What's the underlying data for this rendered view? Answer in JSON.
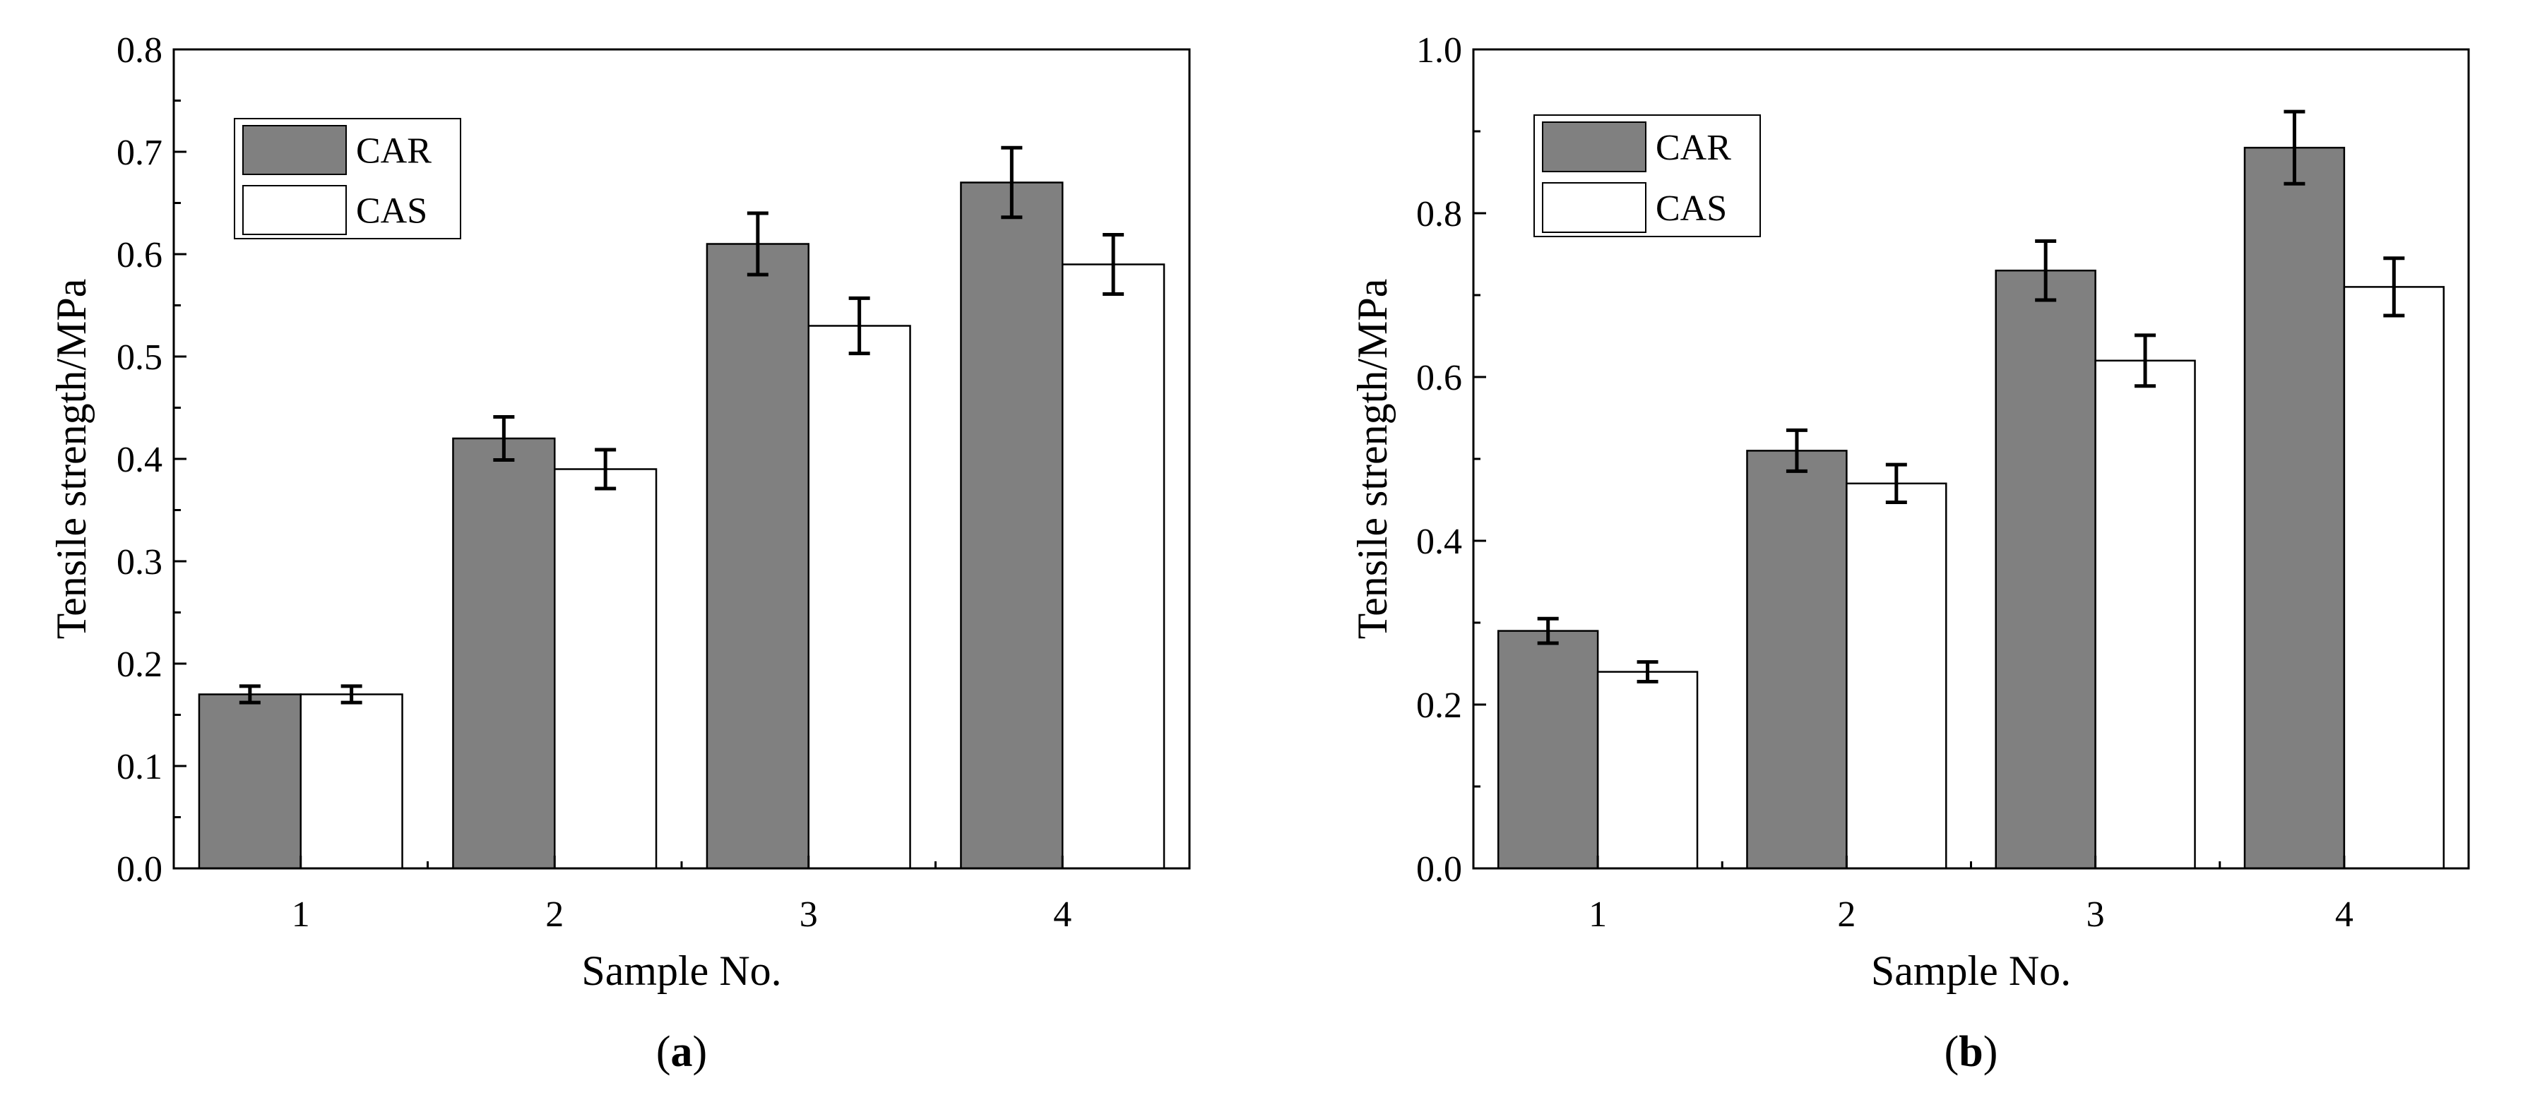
{
  "colors": {
    "car": "#808080",
    "cas": "#ffffff",
    "stroke": "#000000"
  },
  "chart_data": [
    {
      "type": "bar",
      "panel_open": "(",
      "panel_letter": "a",
      "panel_close": ")",
      "categories": [
        "1",
        "2",
        "3",
        "4"
      ],
      "series": [
        {
          "name": "CAR",
          "values": [
            0.17,
            0.42,
            0.61,
            0.67
          ],
          "errors": [
            0.008,
            0.021,
            0.03,
            0.034
          ]
        },
        {
          "name": "CAS",
          "values": [
            0.17,
            0.39,
            0.53,
            0.59
          ],
          "errors": [
            0.008,
            0.019,
            0.027,
            0.029
          ]
        }
      ],
      "xlabel": "Sample No.",
      "ylabel": "Tensile strength/MPa",
      "ylim": [
        0,
        0.8
      ],
      "yticks": [
        "0.0",
        "0.1",
        "0.2",
        "0.3",
        "0.4",
        "0.5",
        "0.6",
        "0.7",
        "0.8"
      ],
      "ytick_values": [
        0,
        0.1,
        0.2,
        0.3,
        0.4,
        0.5,
        0.6,
        0.7,
        0.8
      ],
      "legend_position": "top-left"
    },
    {
      "type": "bar",
      "panel_open": "(",
      "panel_letter": "b",
      "panel_close": ")",
      "categories": [
        "1",
        "2",
        "3",
        "4"
      ],
      "series": [
        {
          "name": "CAR",
          "values": [
            0.29,
            0.51,
            0.73,
            0.88
          ],
          "errors": [
            0.015,
            0.025,
            0.036,
            0.044
          ]
        },
        {
          "name": "CAS",
          "values": [
            0.24,
            0.47,
            0.62,
            0.71
          ],
          "errors": [
            0.012,
            0.023,
            0.031,
            0.035
          ]
        }
      ],
      "xlabel": "Sample No.",
      "ylabel": "Tensile strength/MPa",
      "ylim": [
        0,
        1.0
      ],
      "yticks": [
        "0.0",
        "0.2",
        "0.4",
        "0.6",
        "0.8",
        "1.0"
      ],
      "ytick_values": [
        0,
        0.2,
        0.4,
        0.6,
        0.8,
        1.0
      ],
      "legend_position": "top-left"
    }
  ]
}
